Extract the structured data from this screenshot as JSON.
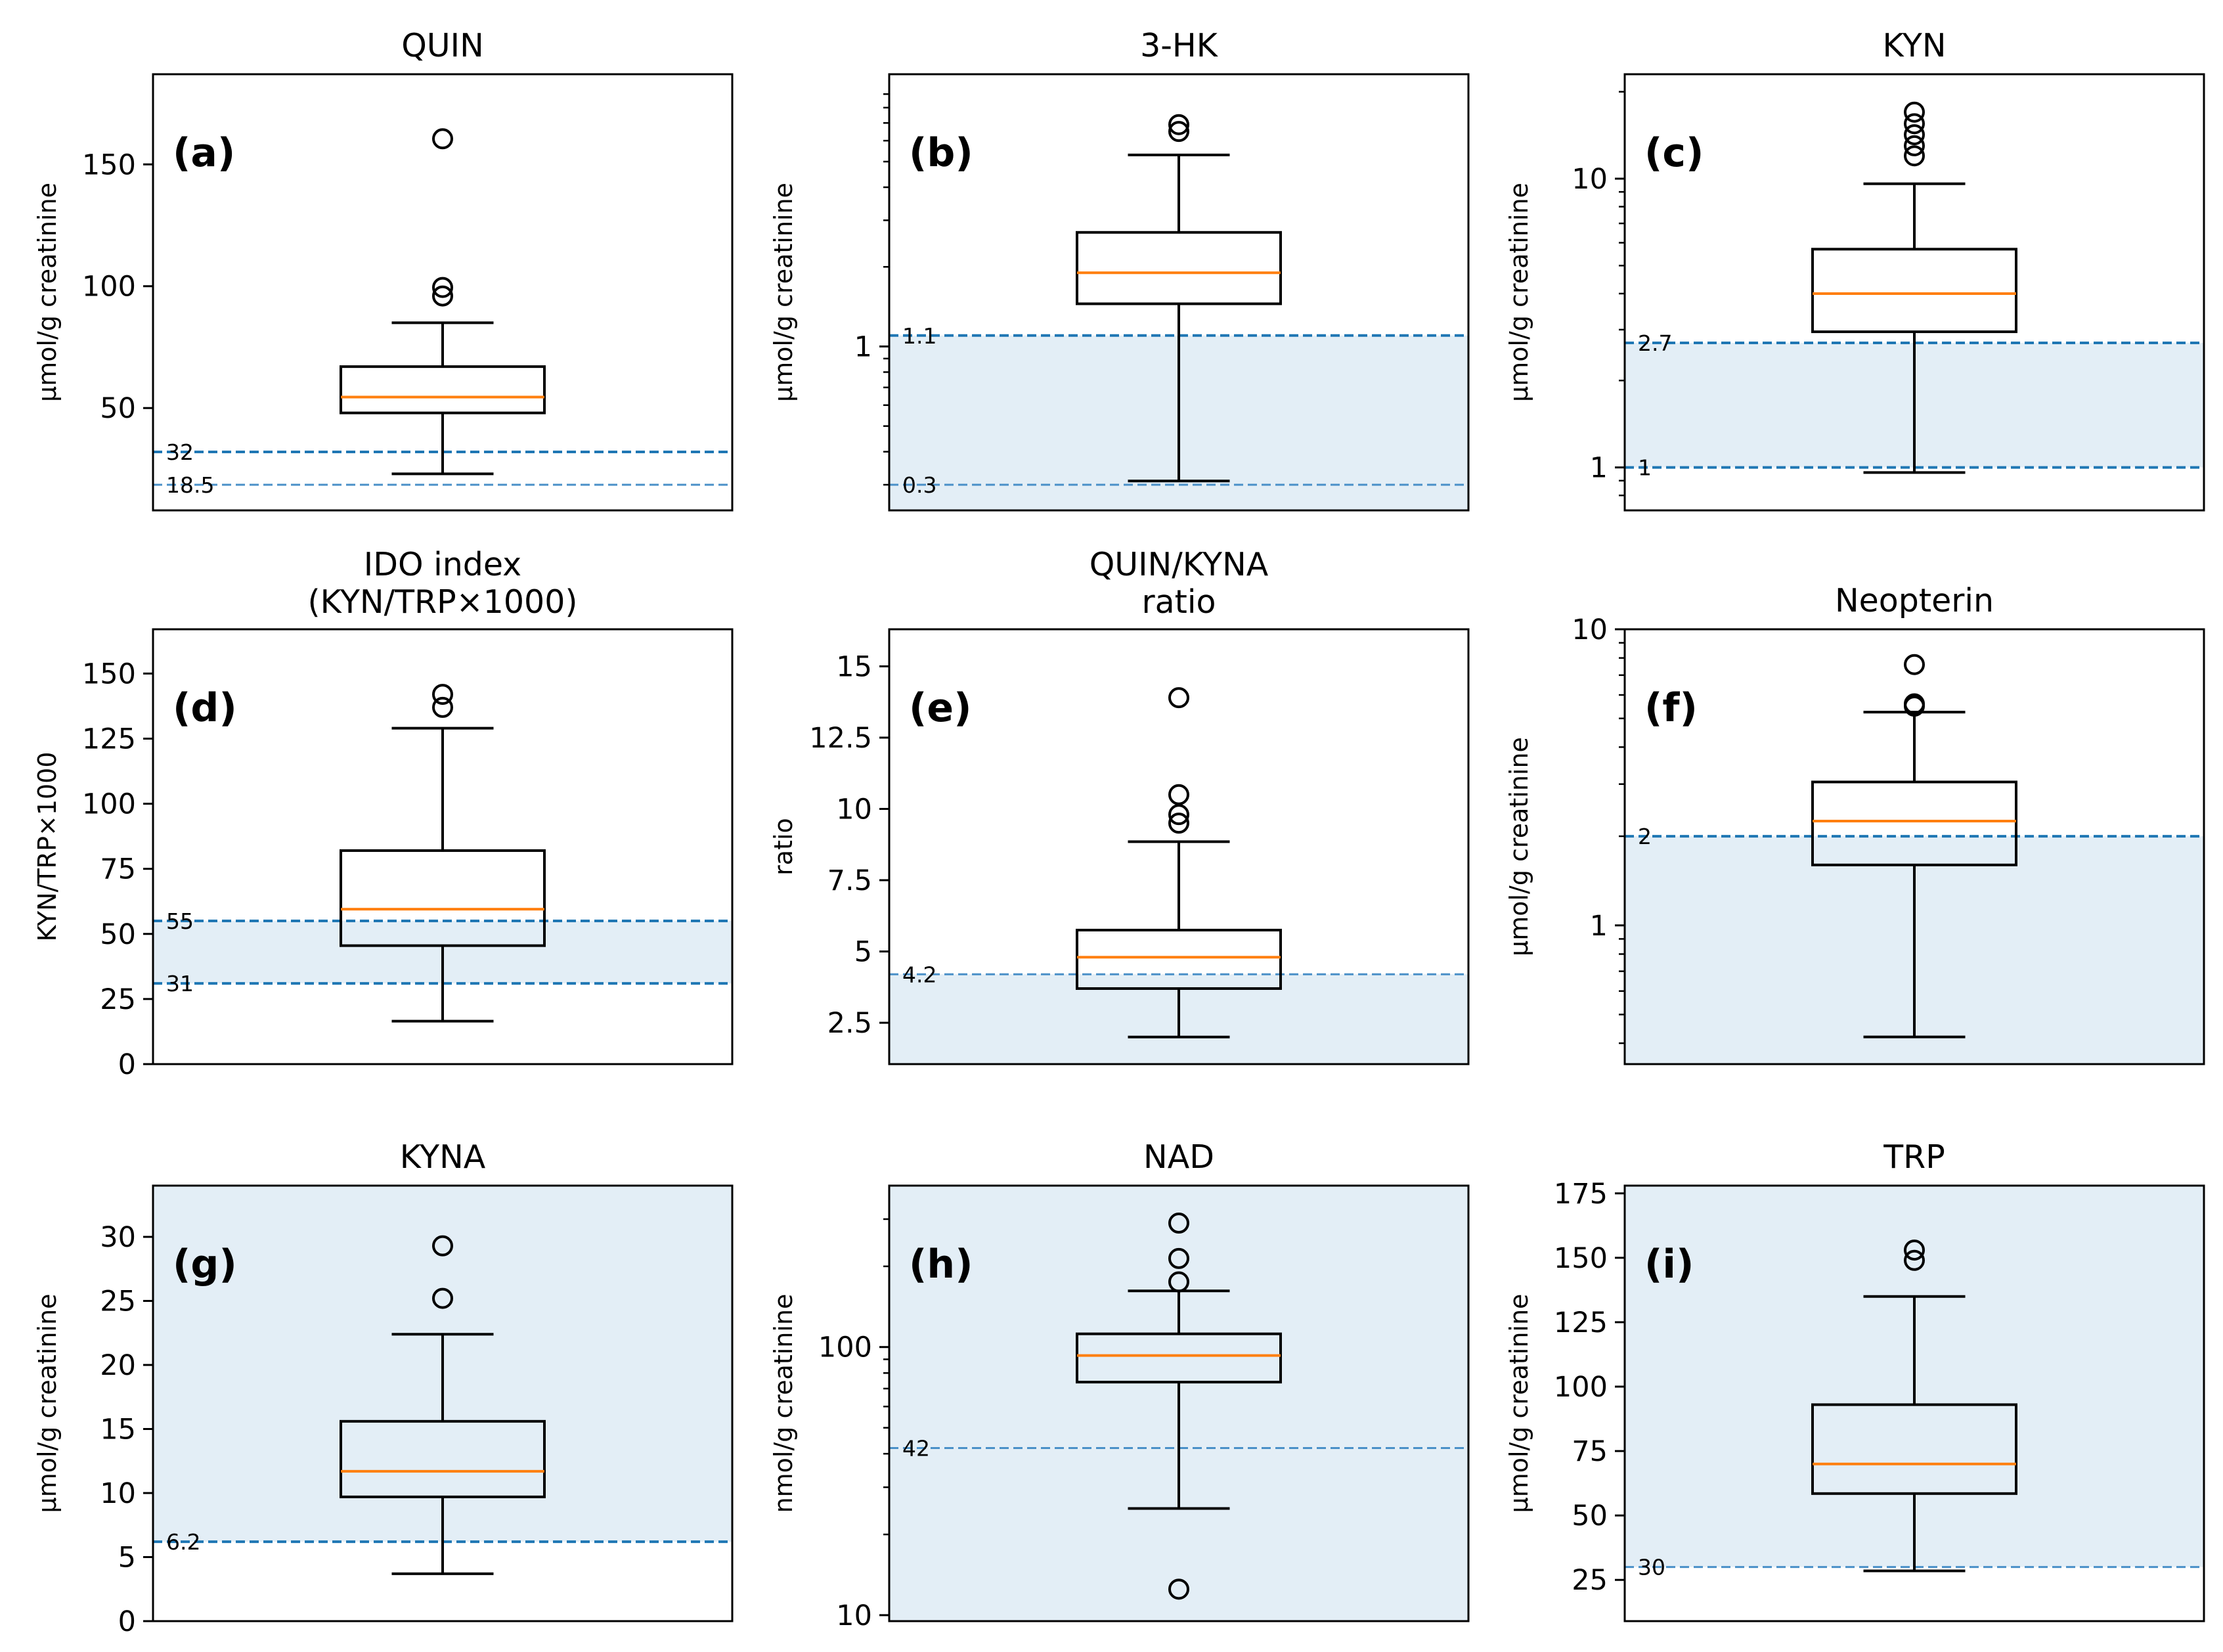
{
  "colors": {
    "box": "#000000",
    "median": "#ff7f0e",
    "ref_dark": "#1f77b4",
    "ref_light": "#4a90c8",
    "shade": "#e3eef6"
  },
  "chart_data": [
    {
      "type": "box",
      "title": [
        "QUIN"
      ],
      "letter": "(a)",
      "ylabel": "µmol/g creatinine",
      "scale": "linear",
      "ylim": [
        8,
        187
      ],
      "yticks": [
        50,
        100,
        150
      ],
      "ytick_labels": [
        "50",
        "100",
        "150"
      ],
      "box": {
        "whisker_low": 23,
        "q1": 48,
        "median": 54.5,
        "q3": 67,
        "whisker_high": 85,
        "outliers": [
          96,
          99.5,
          160.5
        ]
      },
      "refs": [
        {
          "value": 32,
          "label": "32",
          "style": "dark"
        },
        {
          "value": 18.5,
          "label": "18.5",
          "style": "light"
        }
      ],
      "shade": null
    },
    {
      "type": "box",
      "title": [
        "3-HK"
      ],
      "letter": "(b)",
      "ylabel": "µmol/g creatinine",
      "scale": "log",
      "ylim": [
        0.24,
        10.7
      ],
      "yticks": [
        1
      ],
      "ytick_labels": [
        "1"
      ],
      "box": {
        "whisker_low": 0.31,
        "q1": 1.45,
        "median": 1.9,
        "q3": 2.7,
        "whisker_high": 5.3,
        "outliers": [
          6.5,
          6.9
        ]
      },
      "refs": [
        {
          "value": 1.1,
          "label": "1.1",
          "style": "dark"
        },
        {
          "value": 0.3,
          "label": "0.3",
          "style": "light"
        }
      ],
      "shade": [
        0.24,
        1.1
      ]
    },
    {
      "type": "box",
      "title": [
        "KYN"
      ],
      "letter": "(c)",
      "ylabel": "µmol/g creatinine",
      "scale": "log",
      "ylim": [
        0.71,
        23
      ],
      "yticks": [
        1,
        10
      ],
      "ytick_labels": [
        "1",
        "10"
      ],
      "box": {
        "whisker_low": 0.96,
        "q1": 2.95,
        "median": 4.0,
        "q3": 5.7,
        "whisker_high": 9.6,
        "outliers": [
          12,
          13,
          14.2,
          15.5,
          17
        ]
      },
      "refs": [
        {
          "value": 2.7,
          "label": "2.7",
          "style": "dark"
        },
        {
          "value": 1,
          "label": "1",
          "style": "dark"
        }
      ],
      "shade": [
        1,
        2.7
      ]
    },
    {
      "type": "box",
      "title": [
        "IDO index",
        "(KYN/TRP×1000)"
      ],
      "letter": "(d)",
      "ylabel": "KYN/TRP×1000",
      "scale": "linear",
      "ylim": [
        0,
        167
      ],
      "yticks": [
        0,
        25,
        50,
        75,
        100,
        125,
        150
      ],
      "ytick_labels": [
        "0",
        "25",
        "50",
        "75",
        "100",
        "125",
        "150"
      ],
      "box": {
        "whisker_low": 16.5,
        "q1": 45.5,
        "median": 59.5,
        "q3": 82,
        "whisker_high": 129,
        "outliers": [
          137,
          142
        ]
      },
      "refs": [
        {
          "value": 55,
          "label": "55",
          "style": "dark"
        },
        {
          "value": 31,
          "label": "31",
          "style": "dark"
        }
      ],
      "shade": [
        31,
        55
      ]
    },
    {
      "type": "box",
      "title": [
        "QUIN/KYNA",
        "ratio"
      ],
      "letter": "(e)",
      "ylabel": "ratio",
      "scale": "linear",
      "ylim": [
        1.05,
        16.3
      ],
      "yticks": [
        2.5,
        5,
        7.5,
        10,
        12.5,
        15
      ],
      "ytick_labels": [
        "2.5",
        "5",
        "7.5",
        "10",
        "12.5",
        "15"
      ],
      "box": {
        "whisker_low": 2.0,
        "q1": 3.7,
        "median": 4.8,
        "q3": 5.75,
        "whisker_high": 8.85,
        "outliers": [
          9.5,
          9.8,
          10.5,
          13.9
        ]
      },
      "refs": [
        {
          "value": 4.2,
          "label": "4.2",
          "style": "light"
        }
      ],
      "shade": [
        1.05,
        4.2
      ]
    },
    {
      "type": "box",
      "title": [
        "Neopterin"
      ],
      "letter": "(f)",
      "ylabel": "µmol/g creatinine",
      "scale": "log",
      "ylim": [
        0.34,
        10
      ],
      "yticks": [
        1,
        10
      ],
      "ytick_labels": [
        "1",
        "10"
      ],
      "box": {
        "whisker_low": 0.42,
        "q1": 1.6,
        "median": 2.25,
        "q3": 3.05,
        "whisker_high": 5.25,
        "outliers": [
          5.5,
          5.6,
          7.6
        ]
      },
      "refs": [
        {
          "value": 2,
          "label": "2",
          "style": "dark"
        }
      ],
      "shade": [
        0.34,
        2
      ]
    },
    {
      "type": "box",
      "title": [
        "KYNA"
      ],
      "letter": "(g)",
      "ylabel": "µmol/g creatinine",
      "scale": "linear",
      "ylim": [
        0,
        34
      ],
      "yticks": [
        0,
        5,
        10,
        15,
        20,
        25,
        30
      ],
      "ytick_labels": [
        "0",
        "5",
        "10",
        "15",
        "20",
        "25",
        "30"
      ],
      "box": {
        "whisker_low": 3.7,
        "q1": 9.7,
        "median": 11.7,
        "q3": 15.6,
        "whisker_high": 22.4,
        "outliers": [
          25.2,
          29.3
        ]
      },
      "refs": [
        {
          "value": 6.2,
          "label": "6.2",
          "style": "dark"
        }
      ],
      "shade": [
        6.2,
        34
      ]
    },
    {
      "type": "box",
      "title": [
        "NAD"
      ],
      "letter": "(h)",
      "ylabel": "nmol/g creatinine",
      "scale": "log",
      "ylim": [
        9.5,
        400
      ],
      "yticks": [
        10,
        100
      ],
      "ytick_labels": [
        "10",
        "100"
      ],
      "box": {
        "whisker_low": 25,
        "q1": 74,
        "median": 93,
        "q3": 112,
        "whisker_high": 162,
        "outliers": [
          12.5,
          175,
          214,
          290
        ]
      },
      "refs": [
        {
          "value": 42,
          "label": "42",
          "style": "light"
        }
      ],
      "shade": [
        9.5,
        400
      ]
    },
    {
      "type": "box",
      "title": [
        "TRP"
      ],
      "letter": "(i)",
      "ylabel": "µmol/g creatinine",
      "scale": "linear",
      "ylim": [
        9,
        178
      ],
      "yticks": [
        25,
        50,
        75,
        100,
        125,
        150,
        175
      ],
      "ytick_labels": [
        "25",
        "50",
        "75",
        "100",
        "125",
        "150",
        "175"
      ],
      "box": {
        "whisker_low": 28.5,
        "q1": 58.5,
        "median": 70,
        "q3": 93,
        "whisker_high": 135,
        "outliers": [
          149,
          153
        ]
      },
      "refs": [
        {
          "value": 30,
          "label": "30",
          "style": "light"
        }
      ],
      "shade": [
        30,
        178
      ]
    }
  ]
}
